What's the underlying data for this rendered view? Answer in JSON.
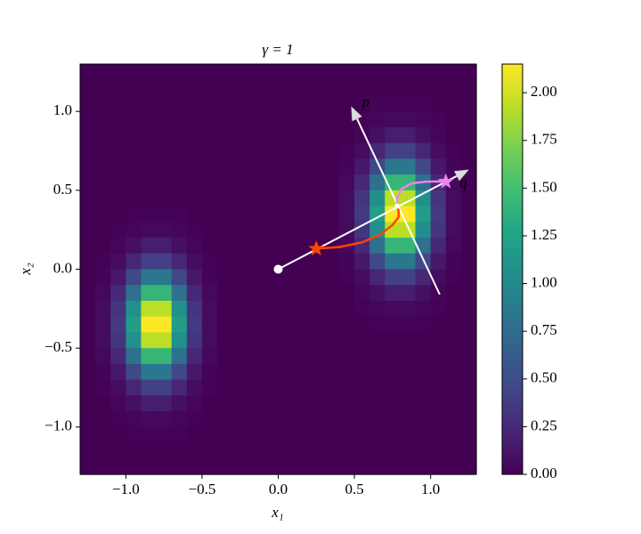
{
  "chart_data": {
    "type": "heatmap",
    "title": "γ = 1",
    "xlabel": "x₁",
    "ylabel": "x₂",
    "xlim": [
      -1.3,
      1.3
    ],
    "ylim": [
      -1.3,
      1.3
    ],
    "xticks": [
      {
        "value": -1.0,
        "label": "−1.0"
      },
      {
        "value": -0.5,
        "label": "−0.5"
      },
      {
        "value": 0.0,
        "label": "0.0"
      },
      {
        "value": 0.5,
        "label": "0.5"
      },
      {
        "value": 1.0,
        "label": "1.0"
      }
    ],
    "yticks": [
      {
        "value": -1.0,
        "label": "−1.0"
      },
      {
        "value": -0.5,
        "label": "−0.5"
      },
      {
        "value": 0.0,
        "label": "0.0"
      },
      {
        "value": 0.5,
        "label": "0.5"
      },
      {
        "value": 1.0,
        "label": "1.0"
      }
    ],
    "colormap": "viridis",
    "z": [
      [
        0,
        0,
        0,
        0,
        0,
        0,
        0,
        0,
        0,
        0,
        0,
        0,
        0,
        0,
        0,
        0,
        0,
        0,
        0,
        0,
        0,
        0,
        0,
        0,
        0,
        0
      ],
      [
        0,
        0,
        0,
        0,
        0,
        0,
        0,
        0,
        0,
        0,
        0,
        0,
        0,
        0,
        0,
        0,
        0,
        0,
        0,
        0,
        0,
        0,
        0,
        0,
        0,
        0
      ],
      [
        0,
        0,
        0,
        0,
        0,
        0,
        0,
        0,
        0,
        0,
        0,
        0,
        0,
        0,
        0,
        0,
        0,
        0,
        0,
        0.01,
        0.01,
        0.01,
        0.01,
        0,
        0,
        0
      ],
      [
        0,
        0,
        0,
        0,
        0,
        0,
        0,
        0,
        0,
        0,
        0,
        0,
        0,
        0,
        0,
        0,
        0,
        0,
        0.01,
        0.03,
        0.05,
        0.05,
        0.03,
        0.01,
        0,
        0
      ],
      [
        0,
        0,
        0,
        0,
        0,
        0,
        0,
        0,
        0,
        0,
        0,
        0,
        0,
        0,
        0,
        0,
        0,
        0,
        0.03,
        0.09,
        0.17,
        0.17,
        0.09,
        0.03,
        0,
        0
      ],
      [
        0,
        0,
        0,
        0,
        0,
        0,
        0,
        0,
        0,
        0,
        0,
        0,
        0,
        0,
        0,
        0,
        0,
        0.01,
        0.07,
        0.23,
        0.41,
        0.41,
        0.23,
        0.07,
        0.01,
        0
      ],
      [
        0,
        0,
        0,
        0,
        0,
        0,
        0,
        0,
        0,
        0,
        0,
        0,
        0,
        0,
        0,
        0,
        0,
        0.02,
        0.14,
        0.47,
        0.85,
        0.85,
        0.47,
        0.14,
        0.02,
        0
      ],
      [
        0,
        0,
        0,
        0,
        0,
        0,
        0,
        0,
        0,
        0,
        0,
        0,
        0,
        0,
        0,
        0,
        0,
        0.04,
        0.24,
        0.79,
        1.42,
        1.42,
        0.79,
        0.24,
        0.04,
        0
      ],
      [
        0,
        0,
        0,
        0,
        0,
        0,
        0,
        0,
        0,
        0,
        0,
        0,
        0,
        0,
        0,
        0,
        0,
        0.06,
        0.33,
        1.07,
        1.93,
        1.93,
        1.07,
        0.33,
        0.06,
        0
      ],
      [
        0,
        0,
        0,
        0.01,
        0.01,
        0.01,
        0.01,
        0,
        0,
        0,
        0,
        0,
        0,
        0,
        0,
        0,
        0,
        0.06,
        0.36,
        1.19,
        2.15,
        2.15,
        1.19,
        0.36,
        0.06,
        0
      ],
      [
        0,
        0,
        0.01,
        0.03,
        0.05,
        0.05,
        0.03,
        0.01,
        0,
        0,
        0,
        0,
        0,
        0,
        0,
        0,
        0,
        0.06,
        0.33,
        1.07,
        1.93,
        1.93,
        1.07,
        0.33,
        0.06,
        0
      ],
      [
        0,
        0,
        0.03,
        0.09,
        0.17,
        0.17,
        0.09,
        0.03,
        0,
        0,
        0,
        0,
        0,
        0,
        0,
        0,
        0,
        0.04,
        0.24,
        0.79,
        1.42,
        1.42,
        0.79,
        0.24,
        0.04,
        0
      ],
      [
        0,
        0.01,
        0.07,
        0.23,
        0.41,
        0.41,
        0.23,
        0.07,
        0.01,
        0,
        0,
        0,
        0,
        0,
        0,
        0,
        0,
        0.02,
        0.14,
        0.47,
        0.85,
        0.85,
        0.47,
        0.14,
        0.02,
        0
      ],
      [
        0,
        0.02,
        0.14,
        0.47,
        0.85,
        0.85,
        0.47,
        0.14,
        0.02,
        0,
        0,
        0,
        0,
        0,
        0,
        0,
        0,
        0.01,
        0.07,
        0.23,
        0.41,
        0.41,
        0.23,
        0.07,
        0.01,
        0
      ],
      [
        0,
        0.04,
        0.24,
        0.79,
        1.42,
        1.42,
        0.79,
        0.24,
        0.04,
        0,
        0,
        0,
        0,
        0,
        0,
        0,
        0,
        0,
        0.03,
        0.09,
        0.17,
        0.17,
        0.09,
        0.03,
        0,
        0
      ],
      [
        0,
        0.06,
        0.33,
        1.07,
        1.93,
        1.93,
        1.07,
        0.33,
        0.06,
        0,
        0,
        0,
        0,
        0,
        0,
        0,
        0,
        0,
        0.01,
        0.03,
        0.05,
        0.05,
        0.03,
        0.01,
        0,
        0
      ],
      [
        0,
        0.06,
        0.36,
        1.19,
        2.15,
        2.15,
        1.19,
        0.36,
        0.06,
        0,
        0,
        0,
        0,
        0,
        0,
        0,
        0,
        0,
        0,
        0.01,
        0.01,
        0.01,
        0.01,
        0,
        0,
        0
      ],
      [
        0,
        0.06,
        0.33,
        1.07,
        1.93,
        1.93,
        1.07,
        0.33,
        0.06,
        0,
        0,
        0,
        0,
        0,
        0,
        0,
        0,
        0,
        0,
        0,
        0,
        0,
        0,
        0,
        0,
        0
      ],
      [
        0,
        0.04,
        0.24,
        0.79,
        1.42,
        1.42,
        0.79,
        0.24,
        0.04,
        0,
        0,
        0,
        0,
        0,
        0,
        0,
        0,
        0,
        0,
        0,
        0,
        0,
        0,
        0,
        0,
        0
      ],
      [
        0,
        0.02,
        0.14,
        0.47,
        0.85,
        0.85,
        0.47,
        0.14,
        0.02,
        0,
        0,
        0,
        0,
        0,
        0,
        0,
        0,
        0,
        0,
        0,
        0,
        0,
        0,
        0,
        0,
        0
      ],
      [
        0,
        0.01,
        0.07,
        0.23,
        0.41,
        0.41,
        0.23,
        0.07,
        0.01,
        0,
        0,
        0,
        0,
        0,
        0,
        0,
        0,
        0,
        0,
        0,
        0,
        0,
        0,
        0,
        0,
        0
      ],
      [
        0,
        0,
        0.03,
        0.09,
        0.17,
        0.17,
        0.09,
        0.03,
        0,
        0,
        0,
        0,
        0,
        0,
        0,
        0,
        0,
        0,
        0,
        0,
        0,
        0,
        0,
        0,
        0,
        0
      ],
      [
        0,
        0,
        0.01,
        0.03,
        0.05,
        0.05,
        0.03,
        0.01,
        0,
        0,
        0,
        0,
        0,
        0,
        0,
        0,
        0,
        0,
        0,
        0,
        0,
        0,
        0,
        0,
        0,
        0
      ],
      [
        0,
        0,
        0,
        0.01,
        0.01,
        0.01,
        0.01,
        0,
        0,
        0,
        0,
        0,
        0,
        0,
        0,
        0,
        0,
        0,
        0,
        0,
        0,
        0,
        0,
        0,
        0,
        0
      ],
      [
        0,
        0,
        0,
        0,
        0,
        0,
        0,
        0,
        0,
        0,
        0,
        0,
        0,
        0,
        0,
        0,
        0,
        0,
        0,
        0,
        0,
        0,
        0,
        0,
        0,
        0
      ],
      [
        0,
        0,
        0,
        0,
        0,
        0,
        0,
        0,
        0,
        0,
        0,
        0,
        0,
        0,
        0,
        0,
        0,
        0,
        0,
        0,
        0,
        0,
        0,
        0,
        0,
        0
      ]
    ],
    "colorbar": {
      "ylim": [
        0,
        2.15
      ],
      "yticks": [
        {
          "value": 0,
          "label": "0.00"
        },
        {
          "value": 0.25,
          "label": "0.25"
        },
        {
          "value": 0.5,
          "label": "0.50"
        },
        {
          "value": 0.75,
          "label": "0.75"
        },
        {
          "value": 1.0,
          "label": "1.00"
        },
        {
          "value": 1.25,
          "label": "1.25"
        },
        {
          "value": 1.5,
          "label": "1.50"
        },
        {
          "value": 1.75,
          "label": "1.75"
        },
        {
          "value": 2.0,
          "label": "2.00"
        }
      ]
    },
    "arrows": [
      {
        "label": "p",
        "color": "#ffffff",
        "x": [
          1.06,
          0.48
        ],
        "y": [
          -0.16,
          1.03
        ]
      },
      {
        "label": "q",
        "color": "#ffffff",
        "x": [
          0,
          1.25
        ],
        "y": [
          0,
          0.63
        ]
      }
    ],
    "lines": [
      {
        "color": "#ff4500",
        "x": [
          0.25,
          0.4,
          0.55,
          0.67,
          0.75,
          0.79,
          0.79,
          0.78
        ],
        "y": [
          0.13,
          0.14,
          0.17,
          0.22,
          0.28,
          0.33,
          0.37,
          0.4
        ]
      },
      {
        "color": "#ee82ee",
        "x": [
          0.78,
          0.78,
          0.81,
          0.88,
          0.97,
          1.05,
          1.1
        ],
        "y": [
          0.4,
          0.45,
          0.51,
          0.545,
          0.555,
          0.556,
          0.555
        ]
      }
    ],
    "points": [
      {
        "marker": "circle",
        "color": "#ffffff",
        "x": 0,
        "y": 0,
        "size": 5
      },
      {
        "marker": "circle",
        "color": "#ffffff",
        "x": 0.78,
        "y": 0.4,
        "size": 3
      },
      {
        "marker": "star",
        "color": "#ff4500",
        "x": 0.25,
        "y": 0.13,
        "size": 8
      },
      {
        "marker": "star",
        "color": "#ee82ee",
        "x": 1.1,
        "y": 0.555,
        "size": 8
      }
    ]
  }
}
